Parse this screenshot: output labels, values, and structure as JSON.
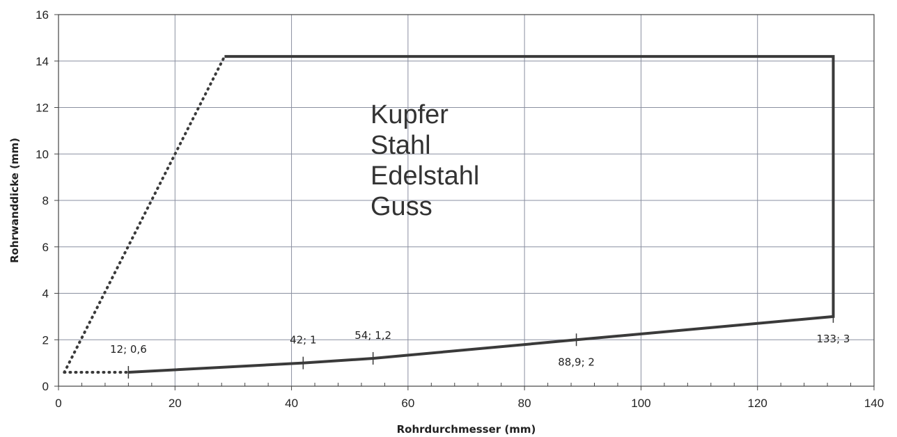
{
  "chart_data": {
    "type": "line",
    "xlabel": "Rohrdurchmesser (mm)",
    "ylabel": "Rohrwanddicke (mm)",
    "xlim": [
      0,
      140
    ],
    "ylim": [
      0,
      16
    ],
    "x_ticks": [
      0,
      20,
      40,
      60,
      80,
      100,
      120,
      140
    ],
    "y_ticks": [
      0,
      2,
      4,
      6,
      8,
      10,
      12,
      14,
      16
    ],
    "grid": true,
    "colors": {
      "grid": "#8a8fa0",
      "line": "#3a3a3a",
      "axis": "#444444"
    },
    "series": [
      {
        "style": "solid",
        "points": [
          [
            12,
            0.6
          ],
          [
            42,
            1
          ],
          [
            54,
            1.2
          ],
          [
            88.9,
            2
          ],
          [
            133,
            3
          ],
          [
            133,
            14.2
          ],
          [
            28.5,
            14.2
          ]
        ]
      },
      {
        "style": "dotted",
        "points": [
          [
            1,
            0.6
          ],
          [
            12,
            0.6
          ]
        ]
      },
      {
        "style": "dotted",
        "points": [
          [
            1,
            0.6
          ],
          [
            28.5,
            14.2
          ]
        ]
      }
    ],
    "point_labels": [
      {
        "x": 12,
        "y": 0.6,
        "text": "12; 0,6",
        "pos": "above"
      },
      {
        "x": 42,
        "y": 1,
        "text": "42; 1",
        "pos": "above"
      },
      {
        "x": 54,
        "y": 1.2,
        "text": "54; 1,2",
        "pos": "above"
      },
      {
        "x": 88.9,
        "y": 2,
        "text": "88,9; 2",
        "pos": "below"
      },
      {
        "x": 133,
        "y": 3,
        "text": "133; 3",
        "pos": "below"
      }
    ],
    "annotations": [
      "Kupfer",
      "Stahl",
      "Edelstahl",
      "Guss"
    ]
  }
}
